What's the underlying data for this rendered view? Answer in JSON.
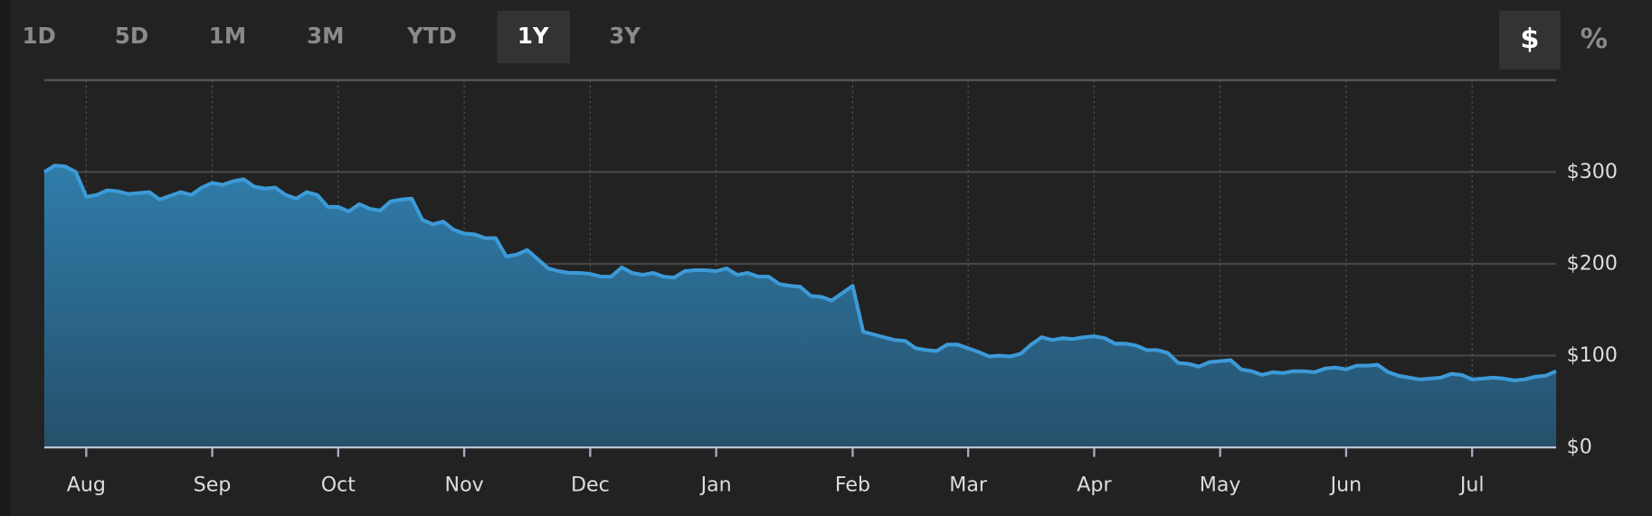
{
  "range_buttons": [
    {
      "label": "1D",
      "selected": false
    },
    {
      "label": "5D",
      "selected": false
    },
    {
      "label": "1M",
      "selected": false
    },
    {
      "label": "3M",
      "selected": false
    },
    {
      "label": "YTD",
      "selected": false
    },
    {
      "label": "1Y",
      "selected": true
    },
    {
      "label": "3Y",
      "selected": false
    }
  ],
  "unit_buttons": [
    {
      "label": "$",
      "selected": true
    },
    {
      "label": "%",
      "selected": false
    }
  ],
  "chart_data": {
    "type": "area",
    "color": "#3d9ad8",
    "fill_top": "#2f7dab",
    "fill_bottom": "#26506b",
    "grid": true,
    "ylim": [
      0,
      400
    ],
    "yticks": [
      {
        "value": 0,
        "label": "$0"
      },
      {
        "value": 100,
        "label": "$100"
      },
      {
        "value": 200,
        "label": "$200"
      },
      {
        "value": 300,
        "label": "$300"
      }
    ],
    "categories": [
      null,
      null,
      null,
      null,
      "Aug",
      null,
      null,
      null,
      null,
      null,
      null,
      null,
      null,
      null,
      null,
      null,
      "Sep",
      null,
      null,
      null,
      null,
      null,
      null,
      null,
      null,
      null,
      null,
      null,
      "Oct",
      null,
      null,
      null,
      null,
      null,
      null,
      null,
      null,
      null,
      null,
      null,
      "Nov",
      null,
      null,
      null,
      null,
      null,
      null,
      null,
      null,
      null,
      null,
      null,
      "Dec",
      null,
      null,
      null,
      null,
      null,
      null,
      null,
      null,
      null,
      null,
      null,
      "Jan",
      null,
      null,
      null,
      null,
      null,
      null,
      null,
      null,
      null,
      null,
      null,
      null,
      "Feb",
      null,
      null,
      null,
      null,
      null,
      null,
      null,
      null,
      null,
      null,
      "Mar",
      null,
      null,
      null,
      null,
      null,
      null,
      null,
      null,
      null,
      null,
      null,
      "Apr",
      null,
      null,
      null,
      null,
      null,
      null,
      null,
      null,
      null,
      null,
      null,
      "May",
      null,
      null,
      null,
      null,
      null,
      null,
      null,
      null,
      null,
      null,
      null,
      "Jun",
      null,
      null,
      null,
      null,
      null,
      null,
      null,
      null,
      null,
      null,
      null,
      "Jul",
      null,
      null,
      null,
      null,
      null,
      null,
      null,
      null
    ],
    "values": [
      300,
      307,
      306,
      300,
      273,
      275,
      280,
      279,
      276,
      277,
      278,
      270,
      274,
      278,
      275,
      283,
      288,
      286,
      290,
      292,
      284,
      282,
      283,
      275,
      271,
      278,
      275,
      262,
      262,
      257,
      265,
      260,
      258,
      268,
      270,
      271,
      248,
      243,
      246,
      237,
      233,
      232,
      228,
      228,
      208,
      210,
      215,
      205,
      195,
      192,
      190,
      190,
      189,
      186,
      186,
      196,
      190,
      188,
      190,
      186,
      185,
      192,
      193,
      193,
      192,
      195,
      188,
      190,
      186,
      186,
      178,
      176,
      175,
      165,
      164,
      160,
      168,
      176,
      126,
      123,
      120,
      117,
      116,
      108,
      106,
      105,
      112,
      112,
      108,
      104,
      99,
      100,
      99,
      102,
      112,
      120,
      117,
      119,
      118,
      120,
      121,
      119,
      113,
      113,
      111,
      106,
      106,
      103,
      92,
      91,
      88,
      93,
      94,
      95,
      85,
      83,
      79,
      82,
      81,
      83,
      83,
      82,
      86,
      87,
      85,
      89,
      89,
      90,
      82,
      78,
      76,
      74,
      75,
      76,
      80,
      79,
      74,
      75,
      76,
      75,
      73,
      74,
      77,
      78,
      83
    ]
  }
}
